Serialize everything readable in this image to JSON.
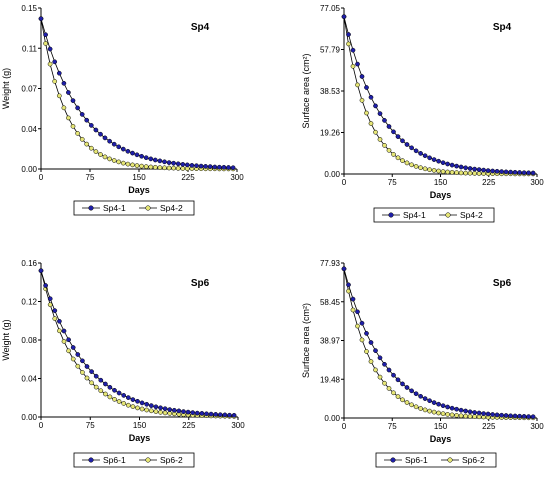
{
  "colors": {
    "series1": "#1f1fa8",
    "series2": "#e6e676",
    "line": "#000000",
    "edge": "#000000"
  },
  "chart_data": [
    {
      "type": "line",
      "title": "Sp4",
      "xlabel": "Days",
      "ylabel": "Weight (g)",
      "xlim": [
        0,
        300
      ],
      "ylim": [
        0,
        0.15
      ],
      "xticks": [
        "0",
        "75",
        "150",
        "225",
        "300"
      ],
      "yticks": [
        "0.00",
        "0.04",
        "0.07",
        "0.11",
        "0.15"
      ],
      "legend_position": "bottom",
      "x": [
        0,
        7,
        14,
        21,
        28,
        35,
        42,
        49,
        56,
        63,
        70,
        77,
        84,
        91,
        98,
        105,
        112,
        119,
        126,
        133,
        140,
        147,
        154,
        161,
        168,
        175,
        182,
        189,
        196,
        203,
        210,
        217,
        224,
        231,
        238,
        245,
        252,
        259,
        266,
        273,
        280,
        287,
        294
      ],
      "series": [
        {
          "name": "Sp4-1",
          "values": [
            0.14,
            0.1251,
            0.1118,
            0.0999,
            0.0893,
            0.0798,
            0.0713,
            0.0637,
            0.0569,
            0.0509,
            0.0455,
            0.0406,
            0.0363,
            0.0324,
            0.029,
            0.0259,
            0.0231,
            0.0207,
            0.0185,
            0.0165,
            0.0148,
            0.0132,
            0.0118,
            0.0105,
            0.0094,
            0.0084,
            0.0075,
            0.0067,
            0.006,
            0.0054,
            0.0048,
            0.0043,
            0.0038,
            0.0034,
            0.0031,
            0.0027,
            0.0024,
            0.0022,
            0.0019,
            0.0017,
            0.0016,
            0.0014,
            0.0012
          ]
        },
        {
          "name": "Sp4-2",
          "values": [
            0.14,
            0.1169,
            0.0977,
            0.0816,
            0.0682,
            0.057,
            0.0476,
            0.0398,
            0.0332,
            0.0277,
            0.0232,
            0.0194,
            0.0162,
            0.0135,
            0.0113,
            0.0094,
            0.0079,
            0.0066,
            0.0055,
            0.0046,
            0.0038,
            0.0032,
            0.0027,
            0.0022,
            0.0019,
            0.0016,
            0.0013,
            0.0011,
            0.0009,
            0.0008,
            0.0006,
            0.0005,
            0.0004,
            0.0004,
            0.0003,
            0.0003,
            0.0002,
            0.0002,
            0.0002,
            0.0001,
            0.0001,
            0.0001,
            0.0001
          ]
        }
      ]
    },
    {
      "type": "line",
      "title": "Sp4",
      "xlabel": "Days",
      "ylabel": "Surface area (cm²)",
      "xlim": [
        0,
        300
      ],
      "ylim": [
        0,
        77.05
      ],
      "xticks": [
        "0",
        "75",
        "150",
        "225",
        "300"
      ],
      "yticks": [
        "0.00",
        "19.26",
        "38.53",
        "57.79",
        "77.05"
      ],
      "legend_position": "bottom",
      "x": [
        0,
        7,
        14,
        21,
        28,
        35,
        42,
        49,
        56,
        63,
        70,
        77,
        84,
        91,
        98,
        105,
        112,
        119,
        126,
        133,
        140,
        147,
        154,
        161,
        168,
        175,
        182,
        189,
        196,
        203,
        210,
        217,
        224,
        231,
        238,
        245,
        252,
        259,
        266,
        273,
        280,
        287,
        294
      ],
      "series": [
        {
          "name": "Sp4-1",
          "values": [
            73,
            64.77,
            57.47,
            50.99,
            45.24,
            40.14,
            35.61,
            31.6,
            28.03,
            24.87,
            22.07,
            19.58,
            17.37,
            15.41,
            13.68,
            12.14,
            10.77,
            9.55,
            8.48,
            7.52,
            6.67,
            5.92,
            5.25,
            4.66,
            4.13,
            3.67,
            3.26,
            2.89,
            2.56,
            2.27,
            2.02,
            1.79,
            1.59,
            1.41,
            1.25,
            1.11,
            0.98,
            0.87,
            0.77,
            0.69,
            0.61,
            0.54,
            0.48
          ]
        },
        {
          "name": "Sp4-2",
          "values": [
            73,
            60.4,
            49.98,
            41.35,
            34.22,
            28.31,
            23.43,
            19.38,
            16.04,
            13.27,
            10.98,
            9.09,
            7.52,
            6.22,
            5.15,
            4.26,
            3.52,
            2.92,
            2.41,
            2,
            1.65,
            1.37,
            1.13,
            0.94,
            0.78,
            0.64,
            0.53,
            0.44,
            0.36,
            0.3,
            0.25,
            0.21,
            0.17,
            0.14,
            0.12,
            0.1,
            0.08,
            0.07,
            0.05,
            0.05,
            0.04,
            0.03,
            0.03
          ]
        }
      ]
    },
    {
      "type": "line",
      "title": "Sp6",
      "xlabel": "Days",
      "ylabel": "Weight (g)",
      "xlim": [
        0,
        300
      ],
      "ylim": [
        0,
        0.16
      ],
      "xticks": [
        "0",
        "75",
        "150",
        "225",
        "300"
      ],
      "yticks": [
        "0.00",
        "0.04",
        "0.08",
        "0.12",
        "0.16"
      ],
      "legend_position": "bottom",
      "x": [
        0,
        7,
        14,
        21,
        28,
        35,
        42,
        49,
        56,
        63,
        70,
        77,
        84,
        91,
        98,
        105,
        112,
        119,
        126,
        133,
        140,
        147,
        154,
        161,
        168,
        175,
        182,
        189,
        196,
        203,
        210,
        217,
        224,
        231,
        238,
        245,
        252,
        259,
        266,
        273,
        280,
        287,
        294
      ],
      "series": [
        {
          "name": "Sp6-1",
          "values": [
            0.152,
            0.1366,
            0.1229,
            0.1105,
            0.0994,
            0.0893,
            0.0803,
            0.0722,
            0.0649,
            0.0584,
            0.0525,
            0.0472,
            0.0424,
            0.0382,
            0.0343,
            0.0309,
            0.0277,
            0.0249,
            0.0224,
            0.0202,
            0.0181,
            0.0163,
            0.0147,
            0.0132,
            0.0118,
            0.0106,
            0.0096,
            0.0086,
            0.0077,
            0.007,
            0.0063,
            0.0056,
            0.0051,
            0.0046,
            0.0041,
            0.0037,
            0.0033,
            0.003,
            0.0027,
            0.0024,
            0.0022,
            0.0019,
            0.0018
          ]
        },
        {
          "name": "Sp6-2",
          "values": [
            0.152,
            0.1332,
            0.1167,
            0.1022,
            0.0896,
            0.0785,
            0.0688,
            0.0603,
            0.0528,
            0.0463,
            0.0405,
            0.0355,
            0.0311,
            0.0273,
            0.0239,
            0.0209,
            0.0184,
            0.0161,
            0.0141,
            0.0123,
            0.0108,
            0.0095,
            0.0083,
            0.0073,
            0.0064,
            0.0056,
            0.0049,
            0.0043,
            0.0037,
            0.0033,
            0.0029,
            0.0025,
            0.0022,
            0.0019,
            0.0017,
            0.0015,
            0.0013,
            0.0011,
            0.001,
            0.0009,
            0.0008,
            0.0007,
            0.0006
          ]
        }
      ]
    },
    {
      "type": "line",
      "title": "Sp6",
      "xlabel": "Days",
      "ylabel": "Surface area (cm²)",
      "xlim": [
        0,
        300
      ],
      "ylim": [
        0,
        77.93
      ],
      "xticks": [
        "0",
        "75",
        "150",
        "225",
        "300"
      ],
      "yticks": [
        "0.00",
        "19.48",
        "38.97",
        "58.45",
        "77.93"
      ],
      "legend_position": "bottom",
      "x": [
        0,
        7,
        14,
        21,
        28,
        35,
        42,
        49,
        56,
        63,
        70,
        77,
        84,
        91,
        98,
        105,
        112,
        119,
        126,
        133,
        140,
        147,
        154,
        161,
        168,
        175,
        182,
        189,
        196,
        203,
        210,
        217,
        224,
        231,
        238,
        245,
        252,
        259,
        266,
        273,
        280,
        287,
        294
      ],
      "series": [
        {
          "name": "Sp6-1",
          "values": [
            75,
            66.96,
            59.78,
            53.37,
            47.64,
            42.53,
            37.97,
            33.9,
            30.26,
            27.02,
            24.12,
            21.53,
            19.22,
            17.16,
            15.32,
            13.68,
            12.21,
            10.9,
            9.73,
            8.69,
            7.76,
            6.93,
            6.18,
            5.52,
            4.93,
            4.4,
            3.93,
            3.5,
            3.13,
            2.79,
            2.49,
            2.23,
            1.99,
            1.77,
            1.58,
            1.41,
            1.26,
            1.13,
            1,
            0.9,
            0.8,
            0.72,
            0.64
          ]
        },
        {
          "name": "Sp6-2",
          "values": [
            75,
            63.8,
            54.28,
            46.18,
            39.28,
            33.42,
            28.43,
            24.19,
            20.58,
            17.5,
            14.89,
            12.67,
            10.78,
            9.17,
            7.8,
            6.64,
            5.65,
            4.8,
            4.09,
            3.48,
            2.96,
            2.52,
            2.14,
            1.82,
            1.55,
            1.32,
            1.12,
            0.95,
            0.81,
            0.69,
            0.59,
            0.5,
            0.42,
            0.36,
            0.31,
            0.26,
            0.22,
            0.19,
            0.16,
            0.14,
            0.12,
            0.1,
            0.08
          ]
        }
      ]
    }
  ]
}
